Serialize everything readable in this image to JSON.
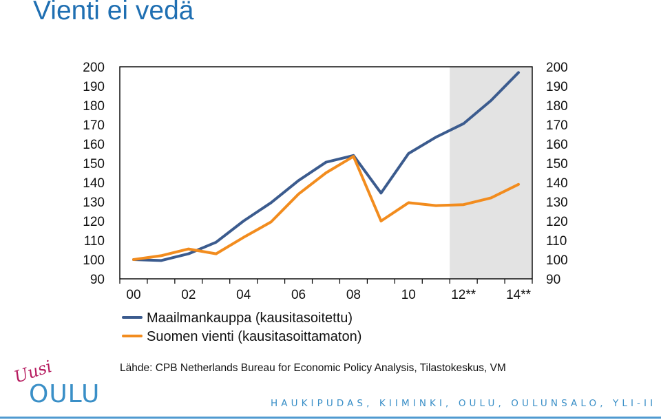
{
  "slide": {
    "title": "Vienti ei vedä",
    "source": "Lähde: CPB Netherlands Bureau for Economic Policy Analysis, Tilastokeskus, VM",
    "footer_places": "HAUKIPUDAS, KIIMINKI, OULU, OULUNSALO, YLI-II",
    "logo_script": "Uusi",
    "logo_word": "OULU"
  },
  "colors": {
    "title": "#1f6fb2",
    "series_world": "#3b5b8e",
    "series_finland": "#f28c1e",
    "forecast_shade": "#e3e3e3",
    "footer": "#3a8fc7",
    "logo_script": "#b5195d"
  },
  "chart_data": {
    "type": "line",
    "x": [
      2000,
      2001,
      2002,
      2003,
      2004,
      2005,
      2006,
      2007,
      2008,
      2009,
      2010,
      2011,
      2012,
      2013,
      2014
    ],
    "xticks": [
      {
        "x": 2000,
        "label": "00"
      },
      {
        "x": 2002,
        "label": "02"
      },
      {
        "x": 2004,
        "label": "04"
      },
      {
        "x": 2006,
        "label": "06"
      },
      {
        "x": 2008,
        "label": "08"
      },
      {
        "x": 2010,
        "label": "10"
      },
      {
        "x": 2012,
        "label": "12**"
      },
      {
        "x": 2014,
        "label": "14**"
      }
    ],
    "xlim": [
      1999.5,
      2014.5
    ],
    "ylim": [
      90,
      200
    ],
    "yticks": [
      90,
      100,
      110,
      120,
      130,
      140,
      150,
      160,
      170,
      180,
      190,
      200
    ],
    "forecast_region": [
      2011.5,
      2014.5
    ],
    "grid": false,
    "legend_position": "below",
    "series": [
      {
        "name": "Maailmankauppa (kausitasoitettu)",
        "color": "#3b5b8e",
        "values": [
          100,
          99.5,
          103,
          109,
          120,
          129.5,
          141,
          150.5,
          154,
          134.5,
          155,
          163.5,
          170.5,
          182.5,
          197
        ]
      },
      {
        "name": "Suomen vienti (kausitasoittamaton)",
        "color": "#f28c1e",
        "values": [
          100,
          102,
          105.5,
          103,
          111.5,
          119.5,
          134,
          145,
          153.5,
          120,
          129.5,
          128,
          128.5,
          132,
          139
        ]
      }
    ]
  }
}
